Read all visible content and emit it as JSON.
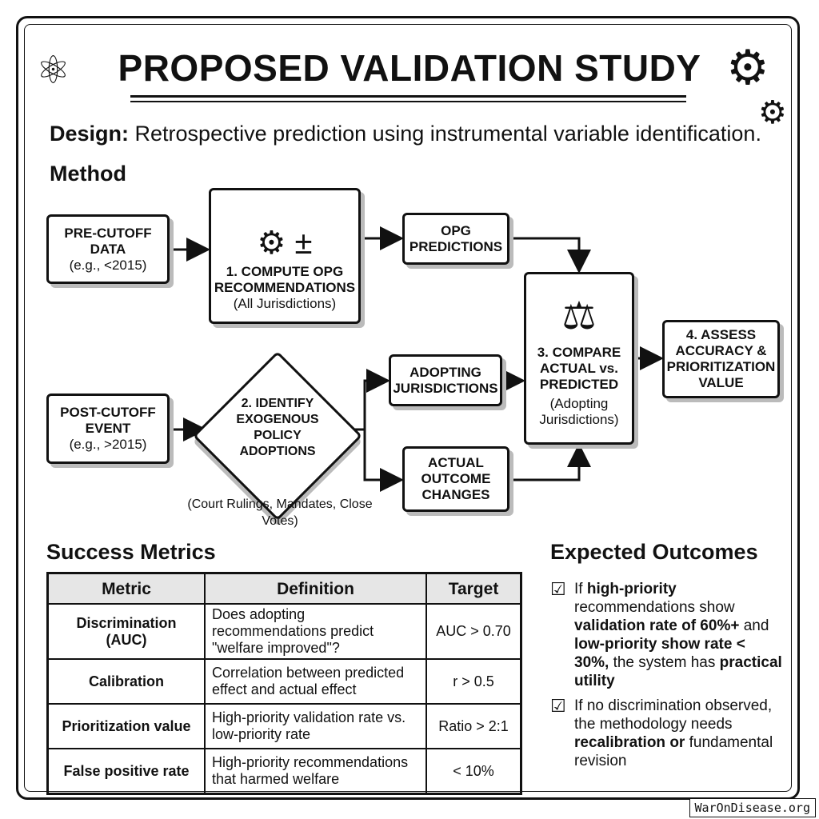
{
  "title": "PROPOSED VALIDATION STUDY",
  "design": {
    "label": "Design:",
    "text": "Retrospective prediction using instrumental variable identification."
  },
  "method": {
    "heading": "Method",
    "pre_cutoff": {
      "title": "PRE-CUTOFF DATA",
      "sub": "(e.g., <2015)"
    },
    "compute": {
      "title": "1. COMPUTE OPG RECOMMENDATIONS",
      "sub": "(All Jurisdictions)",
      "icon": "gears-calculator-icon"
    },
    "opg_predictions": {
      "title": "OPG PREDICTIONS"
    },
    "compare": {
      "title": "3. COMPARE ACTUAL vs. PREDICTED",
      "sub": "(Adopting Jurisdictions)",
      "icon": "scales-icon"
    },
    "assess": {
      "title": "4. ASSESS ACCURACY & PRIORITIZATION VALUE"
    },
    "post_cutoff": {
      "title": "POST-CUTOFF EVENT",
      "sub": "(e.g., >2015)"
    },
    "identify": {
      "title": "2. IDENTIFY EXOGENOUS POLICY ADOPTIONS",
      "caption": "(Court Rulings, Mandates, Close Votes)"
    },
    "adopting": {
      "title": "ADOPTING JURISDICTIONS"
    },
    "actual": {
      "title": "ACTUAL OUTCOME CHANGES"
    }
  },
  "success_metrics": {
    "heading": "Success Metrics",
    "columns": [
      "Metric",
      "Definition",
      "Target"
    ],
    "rows": [
      [
        "Discrimination (AUC)",
        "Does adopting recommendations predict \"welfare improved\"?",
        "AUC > 0.70"
      ],
      [
        "Calibration",
        "Correlation between predicted effect and actual effect",
        "r > 0.5"
      ],
      [
        "Prioritization value",
        "High-priority validation rate vs. low-priority rate",
        "Ratio > 2:1"
      ],
      [
        "False positive rate",
        "High-priority recommendations that harmed welfare",
        "< 10%"
      ]
    ]
  },
  "expected_outcomes": {
    "heading": "Expected Outcomes",
    "items": [
      [
        {
          "t": "If ",
          "b": false
        },
        {
          "t": "high-priority",
          "b": true
        },
        {
          "t": " recommendations show ",
          "b": false
        },
        {
          "t": "validation rate of 60%+",
          "b": true
        },
        {
          "t": " and ",
          "b": false
        },
        {
          "t": "low-priority show rate < 30%,",
          "b": true
        },
        {
          "t": " the system has ",
          "b": false
        },
        {
          "t": "practical utility",
          "b": true
        }
      ],
      [
        {
          "t": "If no discrimination observed, the methodology needs ",
          "b": false
        },
        {
          "t": "recalibration or",
          "b": true
        },
        {
          "t": " fundamental revision",
          "b": false
        }
      ]
    ]
  },
  "watermark": "WarOnDisease.org"
}
